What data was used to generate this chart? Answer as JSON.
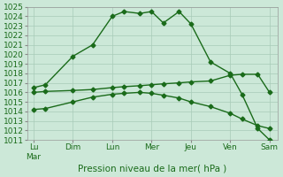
{
  "xlabel": "Pression niveau de la mer( hPa )",
  "background_color": "#cce8d8",
  "grid_color": "#a8cbb8",
  "line_color": "#1a6b1a",
  "marker": "D",
  "markersize": 2.5,
  "linewidth": 1.0,
  "ylim": [
    1011,
    1025
  ],
  "yticks": [
    1011,
    1012,
    1013,
    1014,
    1015,
    1016,
    1017,
    1018,
    1019,
    1020,
    1021,
    1022,
    1023,
    1024,
    1025
  ],
  "xtick_labels": [
    "Lu\nMar",
    "Dim",
    "Lun",
    "Mer",
    "Jeu",
    "Ven",
    "Sam"
  ],
  "xtick_positions": [
    0,
    1,
    2,
    3,
    4,
    5,
    6
  ],
  "line1_x": [
    0,
    0.3,
    1,
    1.5,
    2,
    2.3,
    2.7,
    3,
    3.3,
    3.7,
    4,
    4.5,
    5,
    5.3,
    5.7,
    6
  ],
  "line1_y": [
    1016.5,
    1016.8,
    1019.8,
    1021.0,
    1024.0,
    1024.5,
    1024.3,
    1024.5,
    1023.3,
    1024.5,
    1023.2,
    1019.2,
    1018.0,
    1015.8,
    1012.2,
    1011.0
  ],
  "line2_x": [
    0,
    0.3,
    1,
    1.5,
    2,
    2.3,
    2.7,
    3,
    3.3,
    3.7,
    4,
    4.5,
    5,
    5.3,
    5.7,
    6
  ],
  "line2_y": [
    1016.0,
    1016.1,
    1016.2,
    1016.3,
    1016.5,
    1016.6,
    1016.7,
    1016.8,
    1016.9,
    1017.0,
    1017.1,
    1017.2,
    1017.8,
    1017.9,
    1017.9,
    1016.0
  ],
  "line3_x": [
    0,
    0.3,
    1,
    1.5,
    2,
    2.3,
    2.7,
    3,
    3.3,
    3.7,
    4,
    4.5,
    5,
    5.3,
    5.7,
    6
  ],
  "line3_y": [
    1014.2,
    1014.3,
    1015.0,
    1015.5,
    1015.8,
    1015.9,
    1016.0,
    1015.9,
    1015.7,
    1015.4,
    1015.0,
    1014.5,
    1013.8,
    1013.2,
    1012.5,
    1012.2
  ],
  "xlabel_fontsize": 7.5,
  "ytick_fontsize": 6.5,
  "xtick_fontsize": 6.5
}
